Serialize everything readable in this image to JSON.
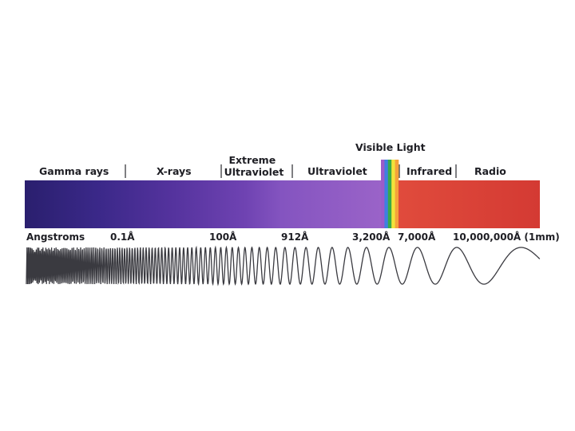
{
  "bands": [
    "Gamma rays",
    "X-rays",
    "Extreme Ultraviolet",
    "Ultraviolet",
    "Infrared",
    "Radio"
  ],
  "visible_light_label": "Visible Light",
  "unit_label": "Angstroms",
  "wavelength_ticks": [
    "0.1Å",
    "100Å",
    "912Å",
    "3,200Å",
    "7,000Å",
    "10,000,000Å (1mm)"
  ],
  "colors": {
    "gamma": "#2a1f6e",
    "xray": "#3d2a8a",
    "uv": "#7a48b8",
    "infrared": "#d8443a",
    "radio": "#d73b34",
    "wave": "#3a3a40"
  },
  "visible_stripes": [
    "#9b5cc9",
    "#3f7fe0",
    "#38a84a",
    "#f2e23a",
    "#f5a23a"
  ]
}
